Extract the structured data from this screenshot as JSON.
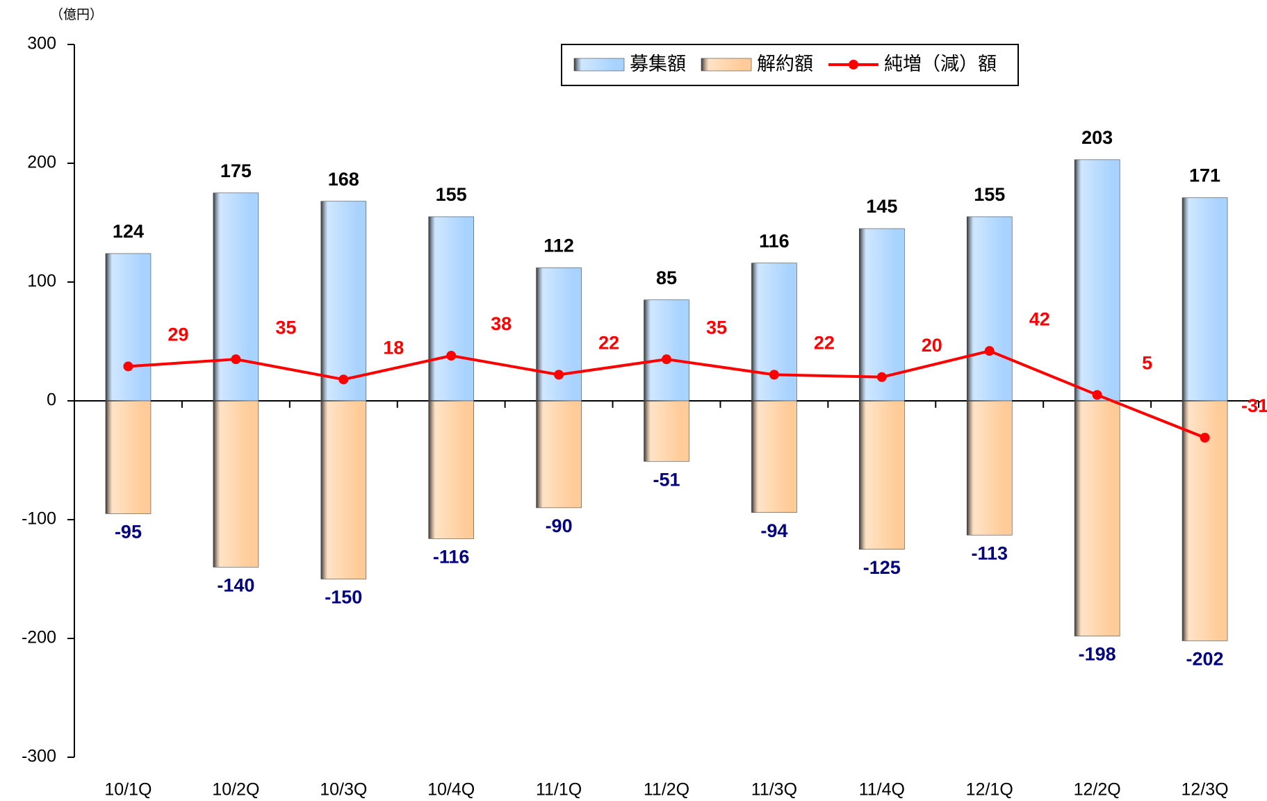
{
  "chart_data": {
    "type": "bar-line",
    "unit_label": "（億円）",
    "categories": [
      "10/1Q",
      "10/2Q",
      "10/3Q",
      "10/4Q",
      "11/1Q",
      "11/2Q",
      "11/3Q",
      "11/4Q",
      "12/1Q",
      "12/2Q",
      "12/3Q"
    ],
    "series": [
      {
        "name": "募集額",
        "type": "bar",
        "color": "#a9d3ff",
        "label_color": "#000000",
        "values": [
          124,
          175,
          168,
          155,
          112,
          85,
          116,
          145,
          155,
          203,
          171
        ]
      },
      {
        "name": "解約額",
        "type": "bar",
        "color": "#ffcc99",
        "label_color": "#000080",
        "values": [
          -95,
          -140,
          -150,
          -116,
          -90,
          -51,
          -94,
          -125,
          -113,
          -198,
          -202
        ]
      },
      {
        "name": "純増（減）額",
        "type": "line",
        "color": "#ff0000",
        "label_color": "#ff0000",
        "values": [
          29,
          35,
          18,
          38,
          22,
          35,
          22,
          20,
          42,
          5,
          -31
        ]
      }
    ],
    "ylim": [
      -300,
      300
    ],
    "yticks": [
      -300,
      -200,
      -100,
      0,
      100,
      200,
      300
    ],
    "grid": false,
    "legend": "top-right"
  }
}
